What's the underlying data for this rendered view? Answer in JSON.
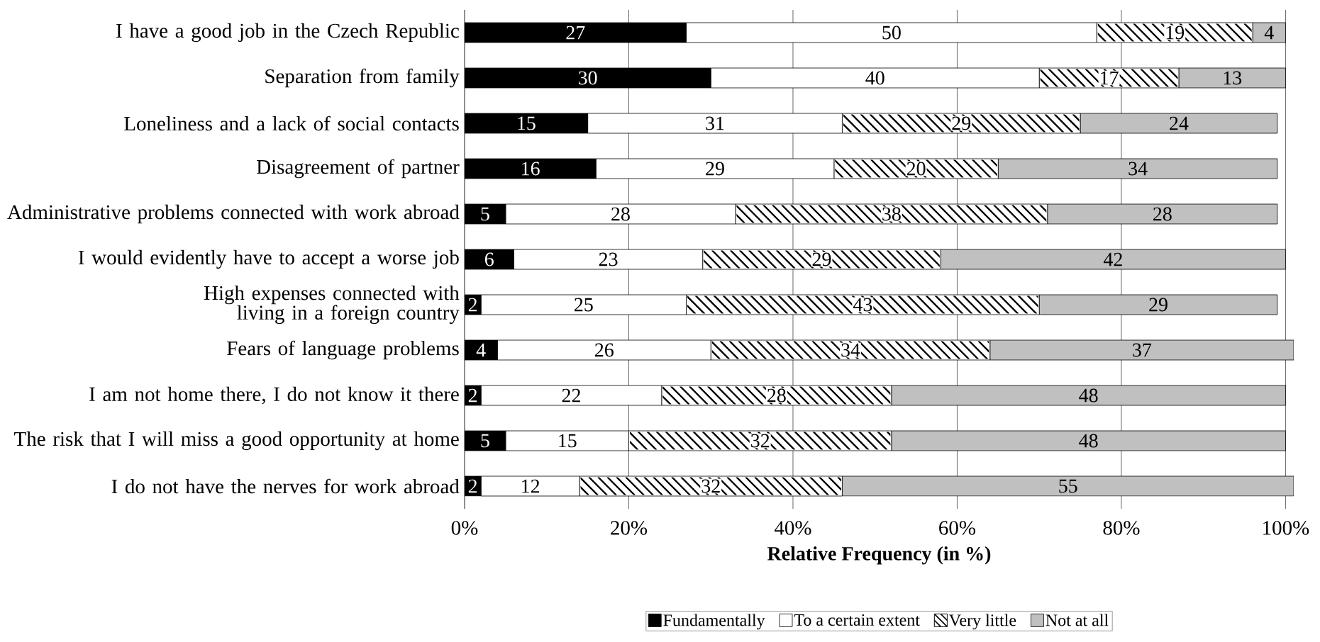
{
  "chart_data": {
    "type": "bar",
    "orientation": "horizontal",
    "stacked": true,
    "data_labels": true,
    "grid": "x",
    "legend": "bottom",
    "xlabel": "Relative Frequency (in %)",
    "categories": [
      "I have a good job in the Czech Republic",
      "Separation from family",
      "Loneliness and a lack of social contacts",
      "Disagreement of partner",
      "Administrative problems connected with work abroad",
      "I would evidently have to accept a worse job",
      "High expenses connected with living in a foreign country",
      "Fears of language problems",
      "I am not home there, I do not know it there",
      "The risk that I will miss a good opportunity at home",
      "I do not have the nerves for work abroad"
    ],
    "xlim": [
      0,
      101
    ],
    "xticks": [
      {
        "value": 0,
        "label": "0%"
      },
      {
        "value": 20,
        "label": "20%"
      },
      {
        "value": 40,
        "label": "40%"
      },
      {
        "value": 60,
        "label": "60%"
      },
      {
        "value": 80,
        "label": "80%"
      },
      {
        "value": 100,
        "label": "100%"
      }
    ],
    "series": [
      {
        "name": "Fundamentally",
        "color": "#000000",
        "values": [
          27,
          30,
          15,
          16,
          5,
          6,
          2,
          4,
          2,
          5,
          2
        ]
      },
      {
        "name": "To a certain extent",
        "color": "#ffffff",
        "values": [
          50,
          40,
          31,
          29,
          28,
          23,
          25,
          26,
          22,
          15,
          12
        ]
      },
      {
        "name": "Very little",
        "color": "#ffffff",
        "values": [
          19,
          17,
          29,
          20,
          38,
          29,
          43,
          34,
          28,
          32,
          32
        ]
      },
      {
        "name": "Not at all",
        "color": "#c0c0c0",
        "values": [
          4,
          13,
          24,
          34,
          28,
          42,
          29,
          37,
          48,
          48,
          55
        ]
      }
    ]
  }
}
